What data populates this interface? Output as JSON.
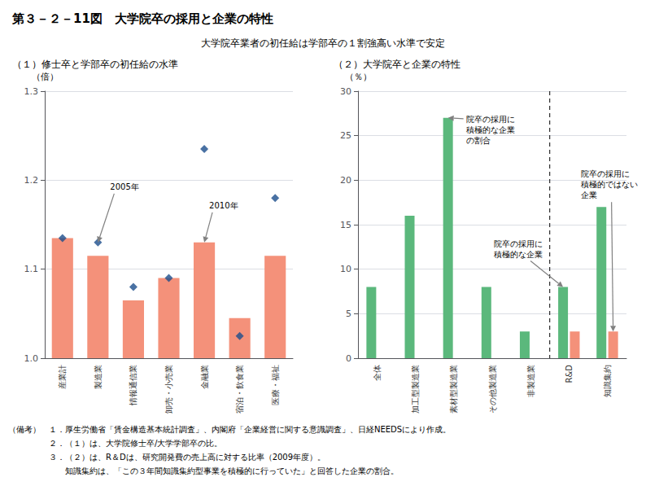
{
  "title": "第３－２－11図　大学院卒の採用と企業の特性",
  "subtitle": "大学院卒業者の初任給は学部卒の１割強高い水準で安定",
  "notes": [
    "（備考）　１．厚生労働省「賃金構造基本統計調査」、内閣府「企業経営に関する意識調査」、日経NEEDSにより作成。",
    "　　　　　２．（１）は、大学院修士卒/大学学部卒の比。",
    "　　　　　３．（２）は、R＆Dは、研究開発費の売上高に対する比率（2009年度）。",
    "　　　　　　　知識集約は、「この３年間知識集約型事業を積極的に行っていた」と回答した企業の割合。"
  ],
  "chart_data": [
    {
      "type": "bar",
      "title": "（１）修士卒と学部卒の初任給の水準",
      "ylabel": "（倍）",
      "categories": [
        "産業計",
        "製造業",
        "情報通信業",
        "卸売・小売業",
        "金融業",
        "宿泊・飲食業",
        "医療・福祉"
      ],
      "series": [
        {
          "type": "bar",
          "color": "#F4917A",
          "values": [
            1.135,
            1.115,
            1.065,
            1.09,
            1.13,
            1.045,
            1.115
          ]
        },
        {
          "type": "scatter",
          "marker": "diamond",
          "color": "#1B4E8C",
          "values": [
            1.135,
            1.13,
            1.08,
            1.09,
            1.235,
            1.025,
            1.18
          ]
        }
      ],
      "ylim": [
        1.0,
        1.3
      ],
      "yticks": [
        {
          "value": 1.0,
          "label": "1.0"
        },
        1.1,
        1.2,
        1.3
      ],
      "grid": true,
      "annotations": [
        {
          "text": "2005年",
          "x": "製造業",
          "y": 1.13
        },
        {
          "text": "2010年",
          "x": "金融業",
          "y": 1.13
        }
      ]
    },
    {
      "type": "bar",
      "title": "（２）大学院卒と企業の特性",
      "ylabel": "（％）",
      "categories": [
        "全体",
        "加工型製造業",
        "素材型製造業",
        "その他製造業",
        "非製造業",
        "R&D",
        "知識集約"
      ],
      "series": [
        {
          "color": "#5BB87C",
          "values": [
            8,
            16,
            27,
            8,
            3,
            8,
            17
          ]
        },
        {
          "color": "#F4917A",
          "values": [
            0,
            0,
            0,
            0,
            0,
            3,
            3
          ]
        }
      ],
      "ylim": [
        0,
        30
      ],
      "yticks": [
        0,
        5,
        10,
        15,
        20,
        25,
        30
      ],
      "grid": true,
      "divider": {
        "after": "非製造業",
        "line_style": "dashed"
      },
      "annotations": [
        {
          "text": "院卒の採用に\n積極的な企業\nの割合",
          "x": "素材型製造業",
          "y": 27
        },
        {
          "text": "院卒の採用に\n積極的な企業",
          "x": "R&D",
          "y": 8
        },
        {
          "text": "院卒の採用に\n積極的ではない\n企業",
          "x": "知識集約",
          "y": 3
        }
      ]
    }
  ]
}
